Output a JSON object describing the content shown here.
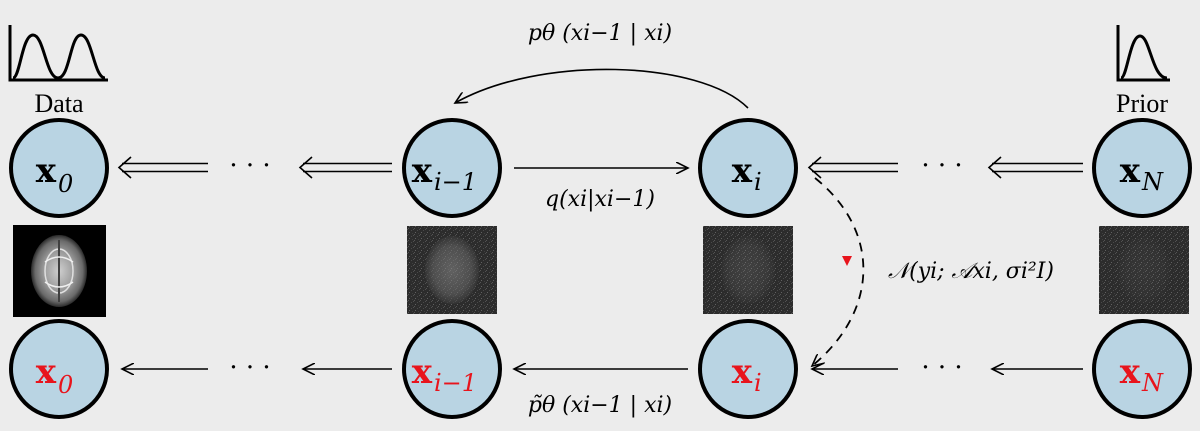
{
  "labels": {
    "data": "Data",
    "prior": "Prior"
  },
  "top_row": [
    {
      "base": "x",
      "sub": "0"
    },
    {
      "base": "x",
      "sub": "i−1"
    },
    {
      "base": "x",
      "sub": "i"
    },
    {
      "base": "x",
      "sub": "N"
    }
  ],
  "bottom_row": [
    {
      "base": "x",
      "sub": "0"
    },
    {
      "base": "x",
      "sub": "i−1"
    },
    {
      "base": "x",
      "sub": "i"
    },
    {
      "base": "x",
      "sub": "N"
    }
  ],
  "ellipsis": "· · ·",
  "equations": {
    "reverse_model": "pθ (xi−1 | xi)",
    "forward_process": "q(xi|xi−1)",
    "guided_reverse": "p̃θ (xi−1 | xi)",
    "likelihood": "𝒩(yi; 𝒜xi, σi²I)"
  },
  "colors": {
    "node_fill": "#b9d4e3",
    "node_stroke": "#000000",
    "bottom_text": "#e8141c",
    "guidance_arrow": "#e8141c",
    "background": "#ececec"
  }
}
